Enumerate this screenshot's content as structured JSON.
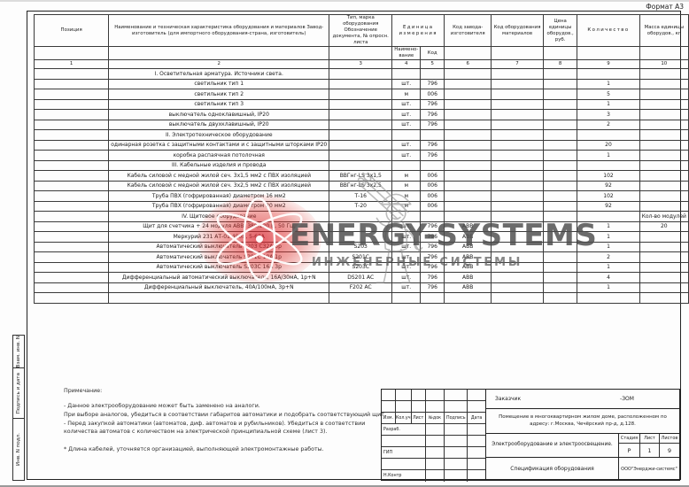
{
  "page": {
    "format_label": "Формат А3"
  },
  "watermark": {
    "brand": "ENERGY-SYSTEMS",
    "subtitle": "ИНЖЕНЕРНЫЕ СИСТЕМЫ",
    "accent_color": "#d81f2a",
    "text_color": "#4c4c4c"
  },
  "side_strip": {
    "cells": [
      "Взам. инв. N",
      "Подпись и дата",
      "Инв. N подл."
    ]
  },
  "spec_table": {
    "headers": {
      "pos": "Позиция",
      "name": "Наименование и техническая характеристика оборудования и материалов Завод-изготовитель (для импортного оборудования-страна, изготовитель)",
      "mark": "Тип, марка оборудования Обозначение документа, № опросн. листа",
      "unit": "Единица измерения",
      "unit_name": "Наимено- вание",
      "unit_code": "Код",
      "mfr": "Код завода- изготовителя",
      "equip": "Код оборудования материалов",
      "price": "Цена единицы оборудов., руб.",
      "qty": "Количество",
      "mass": "Масса единицы оборудов., кг"
    },
    "col_numbers": [
      "1",
      "2",
      "3",
      "4",
      "5",
      "6",
      "7",
      "8",
      "9",
      "10"
    ],
    "rows": [
      {
        "section": "I. Осветительная арматура. Источники света."
      },
      {
        "pos": "",
        "name": "светильник тип 1",
        "mark": "",
        "unit": "шт.",
        "unit_code": "796",
        "mfr_code": "",
        "equip_code": "",
        "price": "",
        "qty": "1",
        "mass": ""
      },
      {
        "pos": "",
        "name": "светильник тип 2",
        "mark": "",
        "unit": "м",
        "unit_code": "006",
        "mfr_code": "",
        "equip_code": "",
        "price": "",
        "qty": "5",
        "mass": ""
      },
      {
        "pos": "",
        "name": "светильник тип 3",
        "mark": "",
        "unit": "шт.",
        "unit_code": "796",
        "mfr_code": "",
        "equip_code": "",
        "price": "",
        "qty": "1",
        "mass": ""
      },
      {
        "pos": "",
        "name": "выключатель одноклавишный, IP20",
        "mark": "",
        "unit": "шт.",
        "unit_code": "796",
        "mfr_code": "",
        "equip_code": "",
        "price": "",
        "qty": "3",
        "mass": ""
      },
      {
        "pos": "",
        "name": "выключатель двухклавишный, IP20",
        "mark": "",
        "unit": "шт.",
        "unit_code": "796",
        "mfr_code": "",
        "equip_code": "",
        "price": "",
        "qty": "2",
        "mass": ""
      },
      {
        "section": "II. Электротехническое оборудование"
      },
      {
        "pos": "",
        "name": "одинарная розетка с защитными контактами и с защитными шторками IP20",
        "mark": "",
        "unit": "шт.",
        "unit_code": "796",
        "mfr_code": "",
        "equip_code": "",
        "price": "",
        "qty": "20",
        "mass": ""
      },
      {
        "pos": "",
        "name": "коробка распаячная потолочная",
        "mark": "",
        "unit": "шт.",
        "unit_code": "796",
        "mfr_code": "",
        "equip_code": "",
        "price": "",
        "qty": "1",
        "mass": ""
      },
      {
        "section": "III. Кабельные изделия и провода"
      },
      {
        "pos": "",
        "name": "Кабель силовой с медной жилой сеч. 3х1,5 мм2 с ПВХ изоляцией",
        "mark": "ВВГнг-LS 3х1,5",
        "unit": "м",
        "unit_code": "006",
        "mfr_code": "",
        "equip_code": "",
        "price": "",
        "qty": "102",
        "mass": ""
      },
      {
        "pos": "",
        "name": "Кабель силовой с медной жилой сеч. 3х2,5 мм2 с ПВХ изоляцией",
        "mark": "ВВГнг-LS 3х2,5",
        "unit": "м",
        "unit_code": "006",
        "mfr_code": "",
        "equip_code": "",
        "price": "",
        "qty": "92",
        "mass": ""
      },
      {
        "pos": "",
        "name": "Труба ПВХ (гофрированная) диаметром 16 мм2",
        "mark": "Т-16",
        "unit": "м",
        "unit_code": "006",
        "mfr_code": "",
        "equip_code": "",
        "price": "",
        "qty": "102",
        "mass": ""
      },
      {
        "pos": "",
        "name": "Труба ПВХ (гофрированная) диаметром 20 мм2",
        "mark": "Т-20",
        "unit": "м",
        "unit_code": "006",
        "mfr_code": "",
        "equip_code": "",
        "price": "",
        "qty": "92",
        "mass": ""
      },
      {
        "section": "IV. Щитовое оборудование",
        "mass_note": "Кол-во\nмодулей"
      },
      {
        "pos": "",
        "name": "Щит для счетчика + 24 модуля АВВ, 380/220 В, 50 Гц.",
        "mark": "",
        "unit": "шт.",
        "unit_code": "796",
        "mfr_code": "АВВ",
        "equip_code": "",
        "price": "",
        "qty": "1",
        "mass": "20"
      },
      {
        "pos": "",
        "name": "Меркурий 231 АТ-01 400В, 5-60А",
        "mark": "",
        "unit": "шт.",
        "unit_code": "796",
        "mfr_code": "АВВ",
        "equip_code": "",
        "price": "",
        "qty": "1",
        "mass": ""
      },
      {
        "pos": "",
        "name": "Автоматический выключатель S203 C32A 3р",
        "mark": "S203",
        "unit": "шт.",
        "unit_code": "796",
        "mfr_code": "АВВ",
        "equip_code": "",
        "price": "",
        "qty": "1",
        "mass": ""
      },
      {
        "pos": "",
        "name": "Автоматический выключатель S201C 10А 1р",
        "mark": "S201C",
        "unit": "шт.",
        "unit_code": "796",
        "mfr_code": "АВВ",
        "equip_code": "",
        "price": "",
        "qty": "2",
        "mass": ""
      },
      {
        "pos": "",
        "name": "Автоматический выключатель S203C 16А 3р",
        "mark": "S203C",
        "unit": "шт.",
        "unit_code": "796",
        "mfr_code": "АВВ",
        "equip_code": "",
        "price": "",
        "qty": "1",
        "mass": ""
      },
      {
        "pos": "",
        "name": "Дифференциальный автоматический выключатель, 16А/30мА, 1р+N",
        "mark": "DS201 AC",
        "unit": "шт.",
        "unit_code": "796",
        "mfr_code": "АВВ",
        "equip_code": "",
        "price": "",
        "qty": "4",
        "mass": ""
      },
      {
        "pos": "",
        "name": "Дифференциальный выключатель, 40А/100мА, 3р+N",
        "mark": "F202 AC",
        "unit": "шт.",
        "unit_code": "796",
        "mfr_code": "АВВ",
        "equip_code": "",
        "price": "",
        "qty": "1",
        "mass": ""
      },
      {
        "pos": "",
        "name": "",
        "mark": "",
        "unit": "",
        "unit_code": "",
        "mfr_code": "",
        "equip_code": "",
        "price": "",
        "qty": "",
        "mass": ""
      }
    ]
  },
  "notes": {
    "title": "Примечание:",
    "lines": [
      "- Данное электрооборудование может быть заменено на аналоги.",
      "При выборе аналогов, убедиться в соответствии габаритов автоматики и подобрать соответствующий щит.",
      "- Перед закупкой автоматики (автоматов, диф. автоматов и рубильников). Убедиться в соответствии",
      "количества автоматов с количеством на электрической принципиальной схеме (лист 3).",
      "",
      "* Длина кабелей, уточняется организацией, выполняющей электромонтажные работы."
    ]
  },
  "title_block": {
    "customer_label": "Заказчик",
    "customer_value": "-ЗОМ",
    "object_text": "Помещение в многоквартирном жилом доме, расположенном по адресу: г.Москва, Чечёрский пр-д, д.128.",
    "doc_title": "Электрооборудование и электроосвещение.",
    "doc_subtitle": "Спецификация оборудования",
    "company": "ООО\"Энерджи-системс\"",
    "stage_label": "Стадия",
    "sheet_label": "Лист",
    "sheets_label": "Листов",
    "stage": "Р",
    "sheet": "1",
    "sheets": "9",
    "rev_headers": [
      "Изм.",
      "Кол.уч",
      "Лист",
      "№док",
      "Подпись",
      "Дата"
    ],
    "roles": [
      "Разраб.",
      "",
      "ГИП",
      "",
      "Н.Контр"
    ]
  }
}
